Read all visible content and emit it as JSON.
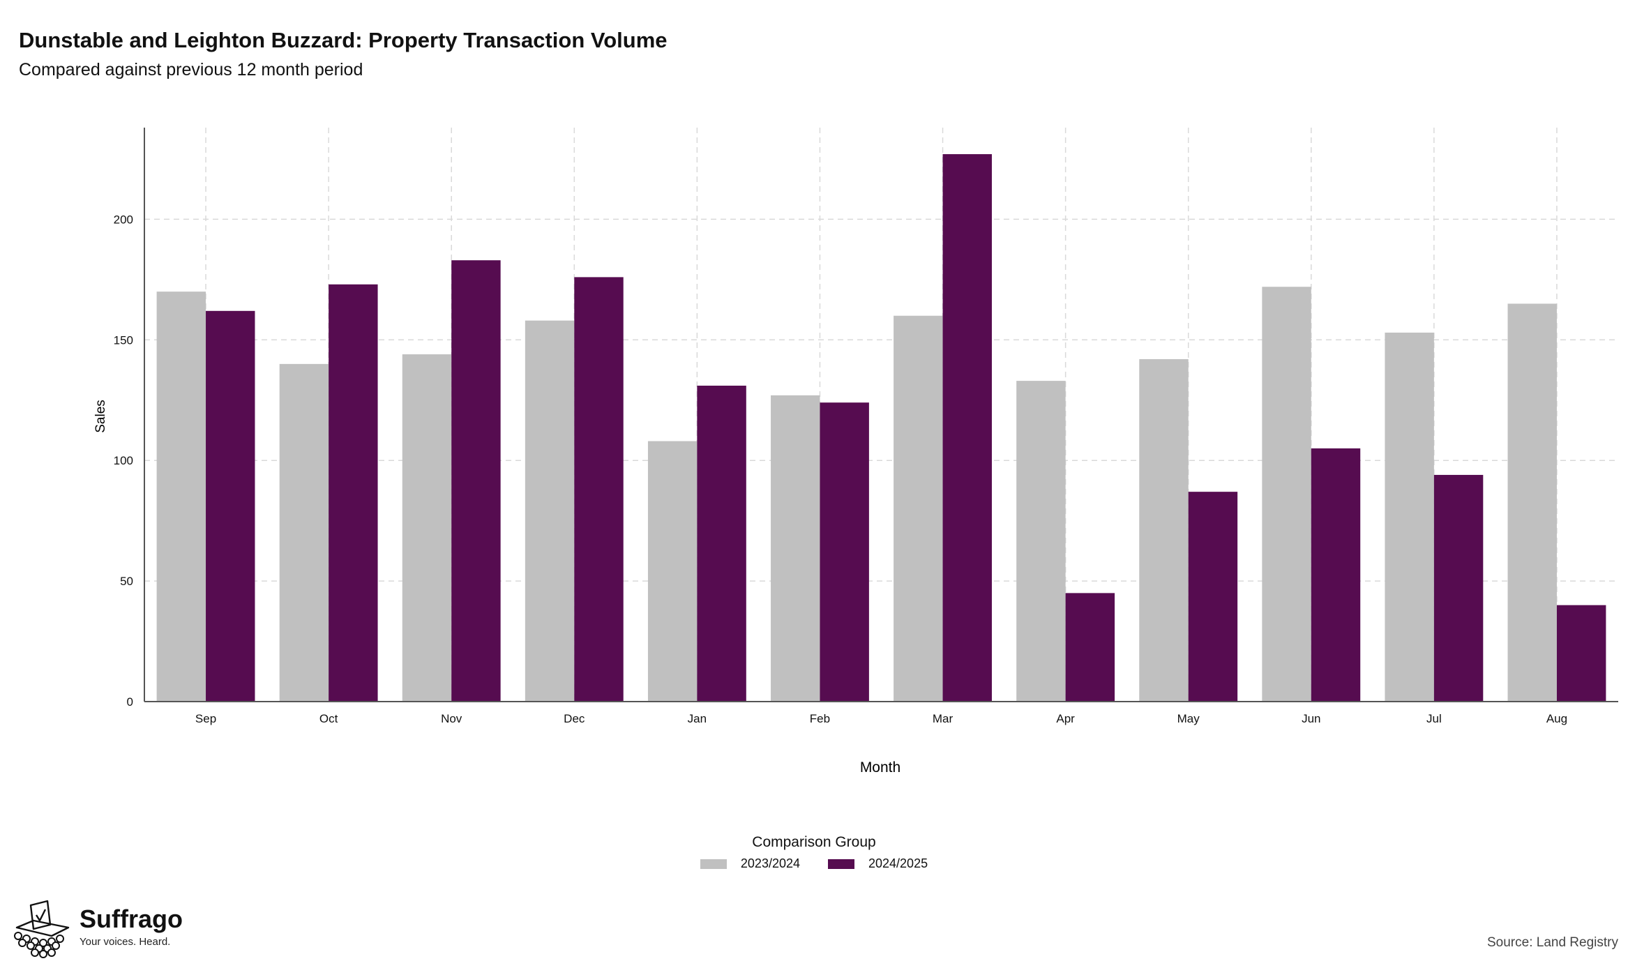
{
  "header": {
    "title": "Dunstable and Leighton Buzzard: Property Transaction Volume",
    "subtitle": "Compared against previous 12 month period"
  },
  "chart_data": {
    "type": "bar",
    "title": "Dunstable and Leighton Buzzard: Property Transaction Volume",
    "subtitle": "Compared against previous 12 month period",
    "xlabel": "Month",
    "ylabel": "Sales",
    "categories": [
      "Sep",
      "Oct",
      "Nov",
      "Dec",
      "Jan",
      "Feb",
      "Mar",
      "Apr",
      "May",
      "Jun",
      "Jul",
      "Aug"
    ],
    "series": [
      {
        "name": "2023/2024",
        "color": "#c0c0c0",
        "values": [
          170,
          140,
          144,
          158,
          108,
          127,
          160,
          133,
          142,
          172,
          153,
          165
        ]
      },
      {
        "name": "2024/2025",
        "color": "#560c50",
        "values": [
          162,
          173,
          183,
          176,
          131,
          124,
          227,
          45,
          87,
          105,
          94,
          40
        ]
      }
    ],
    "ylim": [
      0,
      238
    ],
    "yticks": [
      0,
      50,
      100,
      150,
      200
    ],
    "grid": true,
    "legend": {
      "title": "Comparison Group",
      "placement": "bottom-center"
    }
  },
  "legend": {
    "title": "Comparison Group",
    "items": [
      {
        "label": "2023/2024",
        "color": "#c0c0c0"
      },
      {
        "label": "2024/2025",
        "color": "#560c50"
      }
    ]
  },
  "footer": {
    "brand_name": "Suffrago",
    "brand_tagline": "Your voices. Heard.",
    "brand_icon": "ballot-box-icon",
    "source": "Source: Land Registry"
  }
}
